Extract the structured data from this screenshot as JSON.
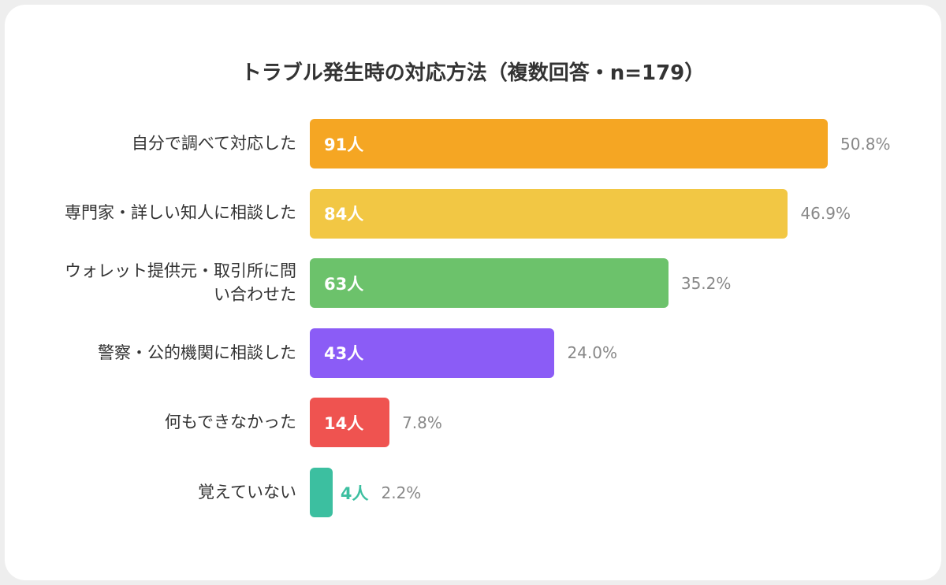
{
  "chart_data": {
    "type": "bar",
    "orientation": "horizontal",
    "title": "トラブル発生時の対応方法（複数回答・n=179）",
    "categories": [
      "自分で調べて対応した",
      "専門家・詳しい知人に相談した",
      "ウォレット提供元・取引所に問い合わせた",
      "警察・公的機関に相談した",
      "何もできなかった",
      "覚えていない"
    ],
    "values": [
      91,
      84,
      63,
      43,
      14,
      4
    ],
    "value_labels": [
      "91人",
      "84人",
      "63人",
      "43人",
      "14人",
      "4人"
    ],
    "percent_labels": [
      "50.8%",
      "46.9%",
      "35.2%",
      "24.0%",
      "7.8%",
      "2.2%"
    ],
    "colors": [
      "#f5a623",
      "#f2c744",
      "#6cc26b",
      "#8b5cf6",
      "#ef5350",
      "#3cbfa0"
    ]
  }
}
